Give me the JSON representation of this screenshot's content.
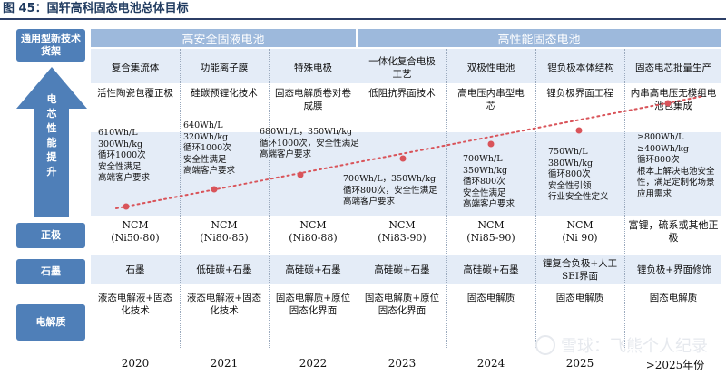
{
  "title": "图 45：国轩高科固态电池总体目标",
  "left_labels": {
    "new_tech": "通用型新技术货架",
    "arrow": [
      "电",
      "芯",
      "性",
      "能",
      "提",
      "升"
    ],
    "cathode": "正极",
    "graphite": "石墨",
    "electrolyte": "电解质"
  },
  "bands": {
    "safety": "高安全固液电池",
    "performance": "高性能固态电池"
  },
  "columns": [
    {
      "year": "2020",
      "tech": "复合集流体",
      "detail": "活性陶瓷包覆正极",
      "spec": [
        "610Wh/L",
        "300Wh/kg",
        "循环1000次",
        "安全性满足",
        "高端客户要求"
      ],
      "cathode": [
        "NCM",
        "(Ni50-80)"
      ],
      "graphite": "石墨",
      "electrolyte": "液态电解液+固态化技术"
    },
    {
      "year": "2021",
      "tech": "功能离子膜",
      "detail": "硅碳预锂化技术",
      "spec": [
        "640Wh/L",
        "320Wh/kg",
        "循环1000次",
        "安全性满足",
        "高端客户要求"
      ],
      "cathode": [
        "NCM",
        "(Ni80-85)"
      ],
      "graphite": "低硅碳+石墨",
      "electrolyte": "液态电解液+固态化技术"
    },
    {
      "year": "2022",
      "tech": "特殊电极",
      "detail": "固态电解质卷对卷成膜",
      "spec": [
        "680Wh/L，350Wh/kg",
        "循环1000次，安全性满足",
        "高端客户要求"
      ],
      "cathode": [
        "NCM",
        "(Ni80-88)"
      ],
      "graphite": "高硅碳+石墨",
      "electrolyte": "固态电解质+原位固态化界面"
    },
    {
      "year": "2023",
      "tech": "一体化复合电极工艺",
      "detail": "低阻抗界面技术",
      "spec": [
        "700Wh/L，350Wh/kg",
        "循环800次，安全性满足",
        "高端客户要求"
      ],
      "cathode": [
        "NCM",
        "(Ni83-90)"
      ],
      "graphite": "高硅碳+石墨",
      "electrolyte": "固态电解质+原位固态化界面"
    },
    {
      "year": "2024",
      "tech": "双极性电池",
      "detail": "高电压内串型电芯",
      "spec": [
        "700Wh/L",
        "350Wh/kg",
        "循环800次",
        "安全性满足",
        "高端客户要求"
      ],
      "cathode": [
        "NCM",
        "(Ni85-90)"
      ],
      "graphite": "高硅碳+石墨",
      "electrolyte": "固态电解质"
    },
    {
      "year": "2025",
      "tech": "锂负极本体结构",
      "detail": "锂负极界面工程",
      "spec": [
        "750Wh/L",
        "380Wh/kg",
        "循环800次",
        "安全性引领",
        "行业安全性定义"
      ],
      "cathode": [
        "NCM",
        "(Ni 90)"
      ],
      "graphite": "锂复合负极+人工SEI界面",
      "electrolyte": "固态电解质"
    },
    {
      "year": ">2025年份",
      "tech": "固态电芯批量生产",
      "detail": "内串高电压无模组电池包集成",
      "spec": [
        "≥800Wh/L",
        "≥400Wh/kg",
        "循环800次",
        "根本上解决电池安全性，满足定制化场景应用需求"
      ],
      "cathode": [
        "富锂，硫系或其他正极"
      ],
      "graphite": "锂负极+界面修饰",
      "electrolyte": "固态电解质"
    }
  ],
  "watermark": "雪球：飞熊个人纪录",
  "colors": {
    "label_box": "#4f7fb8",
    "band": "#9db9dc",
    "stripe": "#e4ecf7",
    "trend": "#d9545a"
  }
}
